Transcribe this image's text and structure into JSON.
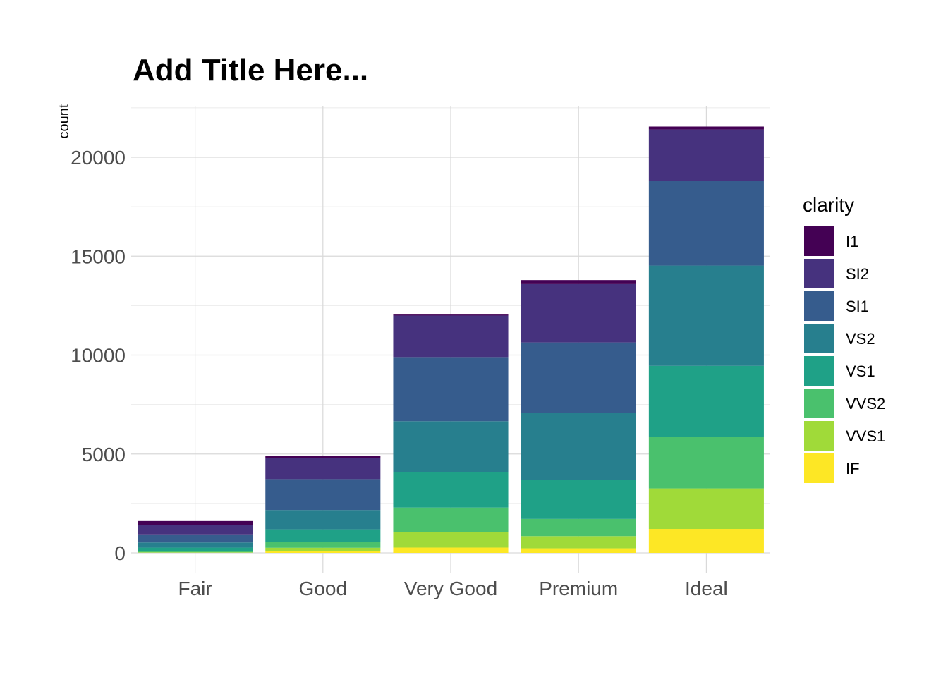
{
  "chart_data": {
    "type": "bar",
    "stacked": true,
    "title": "Add Title Here...",
    "xlabel": "",
    "ylabel": "count",
    "ylim": [
      0,
      22600
    ],
    "yticks": [
      0,
      5000,
      10000,
      15000,
      20000
    ],
    "grid": true,
    "legend_position": "right",
    "legend_title": "clarity",
    "categories": [
      "Fair",
      "Good",
      "Very Good",
      "Premium",
      "Ideal"
    ],
    "series": [
      {
        "name": "IF",
        "color": "#FDE725",
        "values": [
          9,
          71,
          268,
          230,
          1212
        ]
      },
      {
        "name": "VVS1",
        "color": "#A0DA39",
        "values": [
          17,
          186,
          789,
          616,
          2047
        ]
      },
      {
        "name": "VVS2",
        "color": "#4AC16D",
        "values": [
          69,
          286,
          1235,
          870,
          2606
        ]
      },
      {
        "name": "VS1",
        "color": "#1FA187",
        "values": [
          170,
          648,
          1775,
          1989,
          3589
        ]
      },
      {
        "name": "VS2",
        "color": "#277F8E",
        "values": [
          261,
          978,
          2591,
          3357,
          5071
        ]
      },
      {
        "name": "SI1",
        "color": "#365C8D",
        "values": [
          408,
          1560,
          3240,
          3575,
          4282
        ]
      },
      {
        "name": "SI2",
        "color": "#46327E",
        "values": [
          466,
          1081,
          2100,
          2949,
          2598
        ]
      },
      {
        "name": "I1",
        "color": "#440154",
        "values": [
          210,
          96,
          84,
          205,
          146
        ]
      }
    ]
  }
}
